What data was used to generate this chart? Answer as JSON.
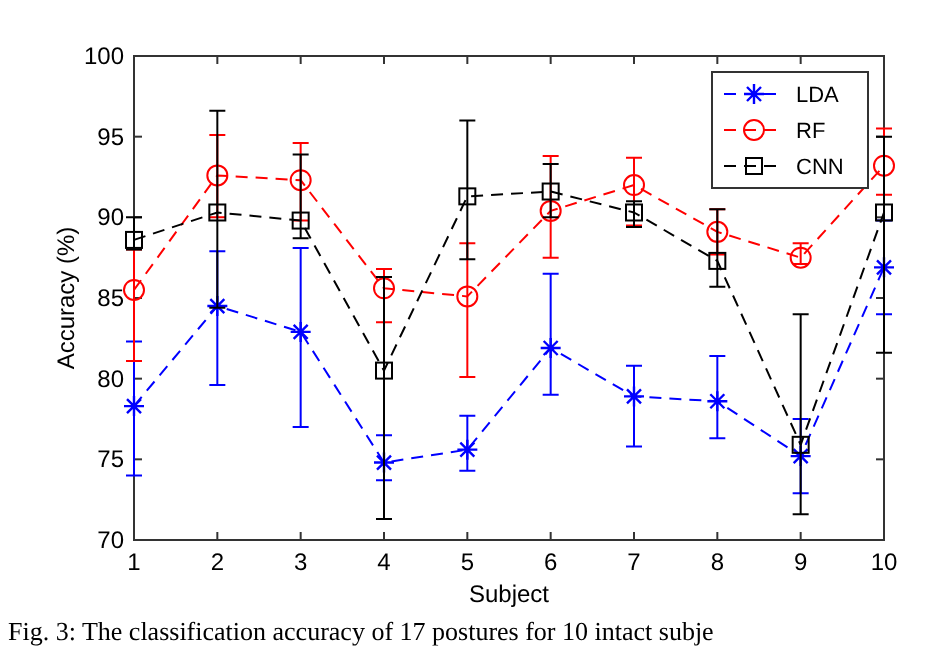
{
  "chart_data": {
    "type": "line",
    "xlabel": "Subject",
    "ylabel": "Accuracy (%)",
    "x": [
      1,
      2,
      3,
      4,
      5,
      6,
      7,
      8,
      9,
      10
    ],
    "xlim": [
      1,
      10
    ],
    "xticks": [
      1,
      2,
      3,
      4,
      5,
      6,
      7,
      8,
      9,
      10
    ],
    "ylim": [
      70,
      100
    ],
    "yticks": [
      70,
      75,
      80,
      85,
      90,
      95,
      100
    ],
    "legend": "top right",
    "line_style": "dashed",
    "grid": false,
    "series": [
      {
        "name": "LDA",
        "color": "#0000ff",
        "marker": "cross",
        "values": [
          78.3,
          84.5,
          82.9,
          74.8,
          75.6,
          81.9,
          78.9,
          78.6,
          75.2,
          86.9
        ],
        "errors": [
          [
            74.0,
            82.3
          ],
          [
            79.6,
            87.9
          ],
          [
            77.0,
            88.1
          ],
          [
            73.7,
            76.5
          ],
          [
            74.3,
            77.7
          ],
          [
            79.0,
            86.5
          ],
          [
            75.8,
            80.8
          ],
          [
            76.3,
            81.4
          ],
          [
            72.9,
            77.5
          ],
          [
            84.0,
            89.8
          ]
        ]
      },
      {
        "name": "RF",
        "color": "#ff0000",
        "marker": "circle",
        "values": [
          85.5,
          92.6,
          92.3,
          85.6,
          85.1,
          90.4,
          92.0,
          89.1,
          87.5,
          93.2
        ],
        "errors": [
          [
            81.1,
            88.0
          ],
          [
            90.0,
            95.1
          ],
          [
            89.8,
            94.6
          ],
          [
            83.5,
            86.8
          ],
          [
            80.1,
            88.4
          ],
          [
            87.5,
            93.8
          ],
          [
            89.5,
            93.7
          ],
          [
            87.7,
            90.5
          ],
          [
            87.1,
            88.4
          ],
          [
            91.4,
            95.5
          ]
        ]
      },
      {
        "name": "CNN",
        "color": "#000000",
        "marker": "square",
        "values": [
          88.6,
          90.3,
          89.8,
          80.5,
          91.3,
          91.6,
          90.3,
          87.3,
          75.9,
          90.3
        ],
        "errors": [
          [
            88.0,
            90.0
          ],
          [
            84.4,
            96.6
          ],
          [
            88.7,
            93.9
          ],
          [
            71.3,
            86.3
          ],
          [
            87.4,
            96.0
          ],
          [
            90.0,
            93.3
          ],
          [
            89.4,
            91.0
          ],
          [
            85.7,
            90.5
          ],
          [
            71.6,
            84.0
          ],
          [
            81.6,
            95.0
          ]
        ]
      }
    ],
    "annotations": [
      "Fig. 3: The classification accuracy of 17 postures for 10 intact subje"
    ]
  }
}
